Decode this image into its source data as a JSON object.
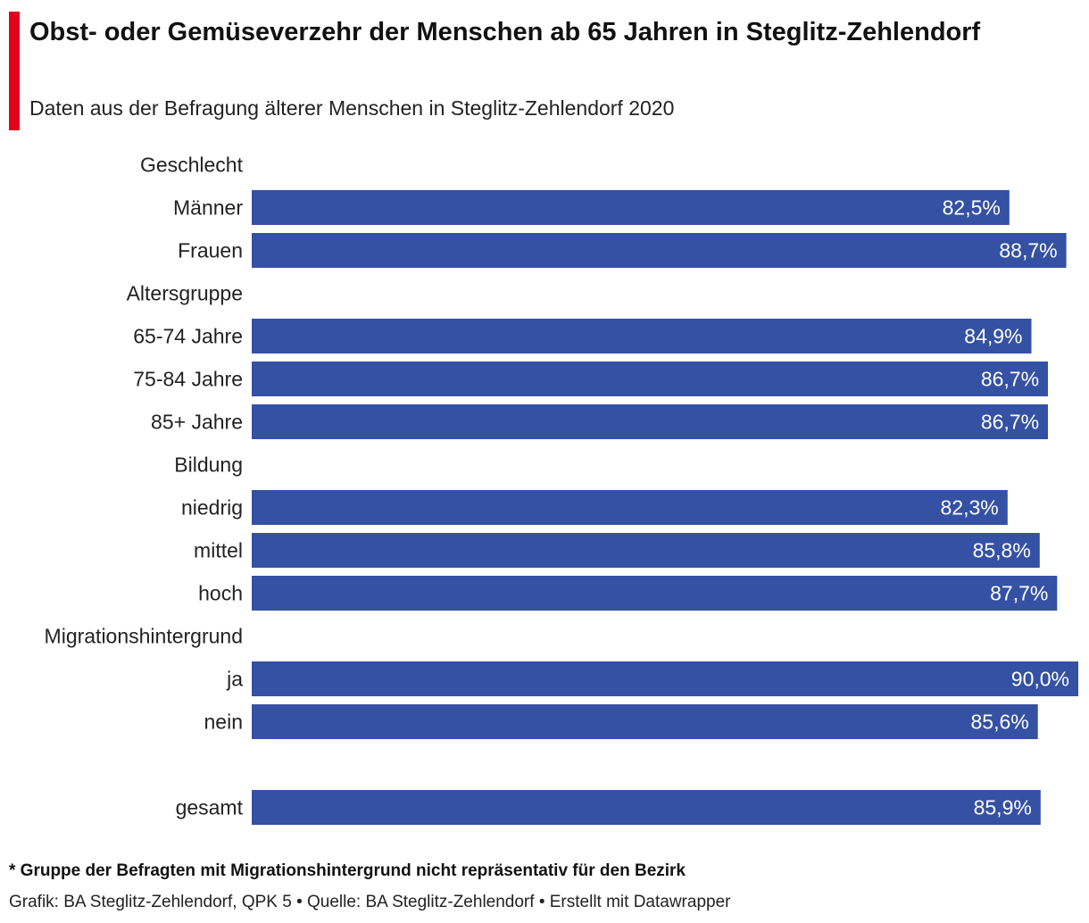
{
  "header": {
    "title": "Obst- oder Gemüseverzehr der Menschen ab 65 Jahren in Steglitz-Zehlendorf",
    "subtitle": "Daten aus der Befragung älterer Menschen in Steglitz-Zehlendorf 2020"
  },
  "colors": {
    "accent": "#e3001b",
    "bar": "#3451a4",
    "value_text": "#ffffff"
  },
  "chart_data": {
    "type": "bar",
    "orientation": "horizontal",
    "value_labels_inside_bar_end": true,
    "grid": false,
    "xlim": [
      0,
      90
    ],
    "groups": [
      {
        "label": "Geschlecht",
        "bars": [
          {
            "category": "Männer",
            "value": 82.5,
            "value_label": "82,5%"
          },
          {
            "category": "Frauen",
            "value": 88.7,
            "value_label": "88,7%"
          }
        ]
      },
      {
        "label": "Altersgruppe",
        "bars": [
          {
            "category": "65-74 Jahre",
            "value": 84.9,
            "value_label": "84,9%"
          },
          {
            "category": "75-84 Jahre",
            "value": 86.7,
            "value_label": "86,7%"
          },
          {
            "category": "85+ Jahre",
            "value": 86.7,
            "value_label": "86,7%"
          }
        ]
      },
      {
        "label": "Bildung",
        "bars": [
          {
            "category": "niedrig",
            "value": 82.3,
            "value_label": "82,3%"
          },
          {
            "category": "mittel",
            "value": 85.8,
            "value_label": "85,8%"
          },
          {
            "category": "hoch",
            "value": 87.7,
            "value_label": "87,7%"
          }
        ]
      },
      {
        "label": "Migrationshintergrund",
        "bars": [
          {
            "category": "ja",
            "value": 90.0,
            "value_label": "90,0%"
          },
          {
            "category": "nein",
            "value": 85.6,
            "value_label": "85,6%"
          }
        ]
      },
      {
        "label": "",
        "bars": [
          {
            "category": "gesamt",
            "value": 85.9,
            "value_label": "85,9%"
          }
        ]
      }
    ]
  },
  "footer": {
    "note": "* Gruppe der Befragten mit Migrationshintergrund nicht repräsentativ für den Bezirk",
    "credits": "Grafik: BA Steglitz-Zehlendorf, QPK 5 • Quelle: BA Steglitz-Zehlendorf • Erstellt mit Datawrapper"
  }
}
